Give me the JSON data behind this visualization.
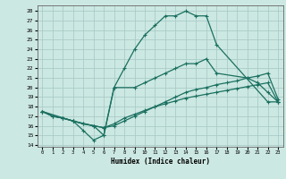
{
  "bg_color": "#cce8e2",
  "grid_color": "#aaccc8",
  "line_color": "#1a7060",
  "xlabel": "Humidex (Indice chaleur)",
  "xlim": [
    -0.5,
    23.5
  ],
  "ylim": [
    13.8,
    28.6
  ],
  "xticks": [
    0,
    1,
    2,
    3,
    4,
    5,
    6,
    7,
    8,
    9,
    10,
    11,
    12,
    13,
    14,
    15,
    16,
    17,
    18,
    19,
    20,
    21,
    22,
    23
  ],
  "yticks": [
    14,
    15,
    16,
    17,
    18,
    19,
    20,
    21,
    22,
    23,
    24,
    25,
    26,
    27,
    28
  ],
  "curve_arch_x": [
    0,
    3,
    4,
    5,
    6,
    7,
    8,
    9,
    10,
    11,
    12,
    13,
    14,
    15,
    16,
    17,
    22,
    23
  ],
  "curve_arch_y": [
    17.5,
    16.5,
    15.5,
    14.5,
    15.0,
    20.0,
    22.0,
    24.0,
    25.5,
    26.5,
    27.5,
    27.5,
    28.0,
    27.5,
    27.5,
    24.5,
    18.5,
    18.5
  ],
  "curve_mid_x": [
    0,
    1,
    2,
    3,
    5,
    6,
    7,
    9,
    10,
    11,
    12,
    13,
    14,
    15,
    16,
    17,
    20,
    21,
    22,
    23
  ],
  "curve_mid_y": [
    17.5,
    17.0,
    16.8,
    16.5,
    16.0,
    15.0,
    20.0,
    20.0,
    20.5,
    21.0,
    21.5,
    22.0,
    22.5,
    22.5,
    23.0,
    21.5,
    21.0,
    20.5,
    19.5,
    18.5
  ],
  "curve_diag_x": [
    0,
    1,
    2,
    3,
    4,
    5,
    6,
    7,
    8,
    9,
    10,
    11,
    12,
    13,
    14,
    15,
    16,
    17,
    18,
    19,
    20,
    21,
    22,
    23
  ],
  "curve_diag_y": [
    17.5,
    17.0,
    16.8,
    16.5,
    16.2,
    16.0,
    15.8,
    16.0,
    16.5,
    17.0,
    17.5,
    18.0,
    18.5,
    19.0,
    19.5,
    19.8,
    20.0,
    20.3,
    20.5,
    20.7,
    21.0,
    21.2,
    21.5,
    18.8
  ],
  "curve_bot_x": [
    0,
    1,
    2,
    3,
    4,
    5,
    6,
    7,
    8,
    9,
    10,
    11,
    12,
    13,
    14,
    15,
    16,
    17,
    18,
    19,
    20,
    21,
    22,
    23
  ],
  "curve_bot_y": [
    17.5,
    17.0,
    16.8,
    16.5,
    16.2,
    16.0,
    15.8,
    16.2,
    16.8,
    17.2,
    17.6,
    18.0,
    18.3,
    18.6,
    18.9,
    19.1,
    19.3,
    19.5,
    19.7,
    19.9,
    20.1,
    20.3,
    20.5,
    18.5
  ]
}
